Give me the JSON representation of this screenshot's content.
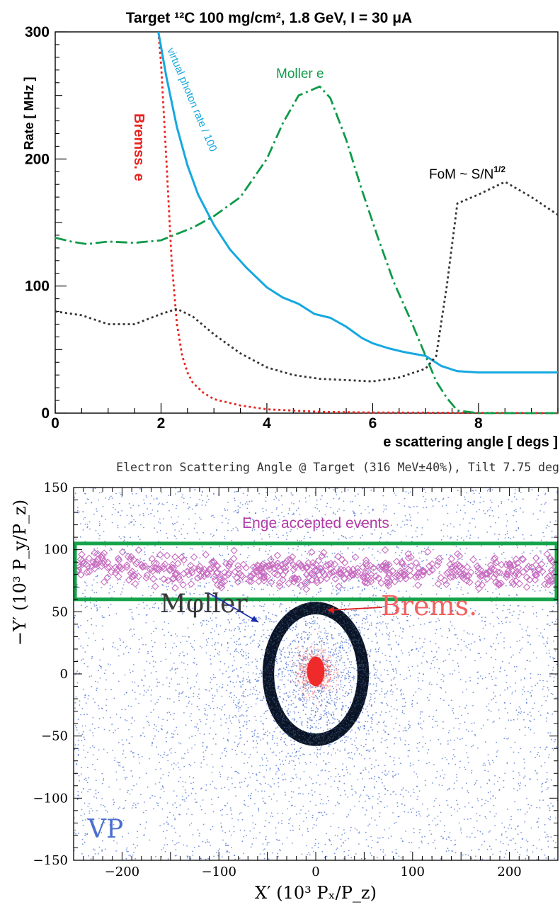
{
  "chart_data": [
    {
      "type": "line",
      "title": "Target ¹²C  100 mg/cm², 1.8 GeV, I = 30 μA",
      "xlabel": "e  scattering angle [ degs ]",
      "ylabel": "Rate [ MHz ]",
      "xlim": [
        0,
        9.5
      ],
      "ylim": [
        0,
        300
      ],
      "xticks": [
        "0",
        "2",
        "4",
        "6",
        "8"
      ],
      "yticks": [
        "0",
        "100",
        "200",
        "300"
      ],
      "grid": false,
      "series": [
        {
          "name": "Bremss. e",
          "color": "#e8231f",
          "style": "dotted",
          "x": [
            1.95,
            2.0,
            2.1,
            2.2,
            2.3,
            2.4,
            2.5,
            2.6,
            2.8,
            3.0,
            3.5,
            4.0,
            5.0,
            6.0,
            8.0,
            9.5
          ],
          "y": [
            300,
            275,
            200,
            120,
            70,
            45,
            32,
            24,
            16,
            11,
            6,
            3,
            1,
            0.5,
            0.2,
            0
          ]
        },
        {
          "name": "virtual photon rate / 100",
          "color": "#16a8e0",
          "style": "solid",
          "x": [
            1.95,
            2.1,
            2.3,
            2.5,
            2.7,
            3.0,
            3.3,
            3.6,
            4.0,
            4.3,
            4.6,
            4.9,
            5.2,
            5.5,
            5.8,
            6.0,
            6.3,
            6.6,
            7.0,
            7.3,
            7.6,
            8.0,
            9.0,
            9.5
          ],
          "y": [
            300,
            265,
            225,
            195,
            172,
            148,
            129,
            115,
            99,
            91,
            86,
            78,
            75,
            68,
            59,
            55,
            51,
            48,
            45,
            37,
            33,
            32,
            32,
            32
          ]
        },
        {
          "name": "Moller e",
          "color": "#0f9a4a",
          "style": "dash-dot",
          "x": [
            0.0,
            0.3,
            0.6,
            1.0,
            1.5,
            2.0,
            2.3,
            2.6,
            3.0,
            3.5,
            4.0,
            4.3,
            4.6,
            5.0,
            5.2,
            5.5,
            5.8,
            6.1,
            6.4,
            6.7,
            7.0,
            7.2,
            7.4,
            7.6,
            8.0,
            9.5
          ],
          "y": [
            138,
            135,
            133,
            135,
            134,
            136,
            141,
            146,
            155,
            170,
            200,
            228,
            250,
            257,
            248,
            215,
            175,
            138,
            103,
            75,
            45,
            25,
            12,
            2,
            0,
            0
          ]
        },
        {
          "name": "FoM ~ S/N¹ᐟ²",
          "color": "#333333",
          "style": "dotted",
          "x": [
            0.0,
            0.5,
            1.0,
            1.5,
            2.0,
            2.3,
            2.6,
            3.0,
            3.5,
            4.0,
            4.5,
            5.0,
            5.5,
            6.0,
            6.5,
            7.0,
            7.2,
            7.4,
            7.6,
            8.0,
            8.5,
            9.0,
            9.5
          ],
          "y": [
            80,
            77,
            70,
            70,
            78,
            82,
            76,
            62,
            47,
            36,
            30,
            27,
            26,
            25,
            28,
            35,
            45,
            100,
            165,
            172,
            182,
            170,
            156
          ]
        }
      ],
      "annotations": [
        "Bremss. e",
        "virtual photon rate / 100",
        "Moller e",
        "FoM ~ S/N"
      ]
    },
    {
      "type": "scatter",
      "title": "Electron Scattering Angle @ Target (316 MeV±40%), Tilt 7.75 deg",
      "xlabel": "X′ (10³ Pₓ/P_z)",
      "ylabel": "−Y′ (10³ P_y/P_z)",
      "xlim": [
        -250,
        250
      ],
      "ylim": [
        -150,
        150
      ],
      "xticks": [
        "−200",
        "−100",
        "0",
        "100",
        "200"
      ],
      "yticks": [
        "−150",
        "−100",
        "−50",
        "0",
        "50",
        "100",
        "150"
      ],
      "grid": false,
      "series": [
        {
          "name": "VP",
          "color": "#4a6fcf",
          "marker": "dot"
        },
        {
          "name": "Enge accepted events",
          "color": "#c86bc0",
          "marker": "diamond",
          "y_range": [
            70,
            95
          ]
        },
        {
          "name": "Mφller",
          "color": "#0b1426",
          "shape": "ring",
          "center": [
            0,
            0
          ],
          "radii_outer": [
            55,
            58
          ],
          "radii_inner": [
            43,
            48
          ]
        },
        {
          "name": "Brems.",
          "color": "#ee2a2a",
          "shape": "core",
          "center": [
            0,
            2
          ],
          "radius": [
            9,
            12
          ]
        }
      ],
      "acceptance_box": {
        "x": [
          -250,
          250
        ],
        "y": [
          60,
          105
        ],
        "color": "#15a34a"
      },
      "annotations": [
        "Enge accepted events",
        "Mφller",
        "Brems.",
        "VP"
      ]
    }
  ]
}
